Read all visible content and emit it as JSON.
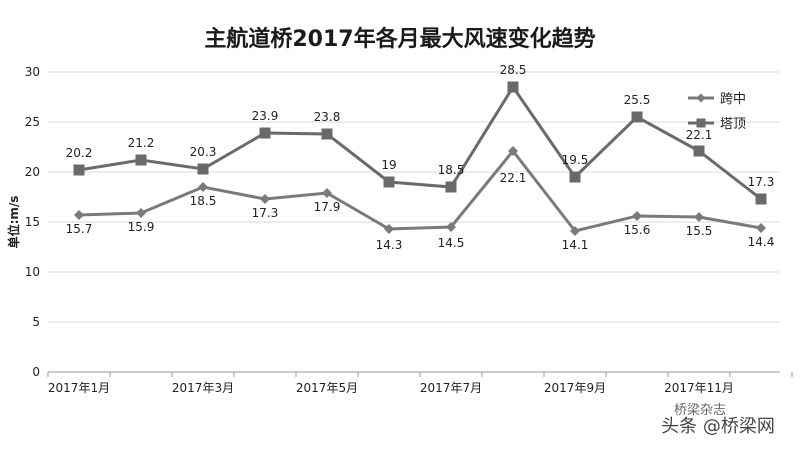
{
  "chart_data": {
    "type": "line",
    "title": "主航道桥2017年各月最大风速变化趋势",
    "ylabel": "单位:m/s",
    "xlabel": "",
    "ylim": [
      0,
      30
    ],
    "yticks": [
      "0",
      "5",
      "10",
      "15",
      "20",
      "25",
      "30"
    ],
    "x": [
      "2017年1月",
      "2017年2月",
      "2017年3月",
      "2017年4月",
      "2017年5月",
      "2017年6月",
      "2017年7月",
      "2017年8月",
      "2017年9月",
      "2017年10月",
      "2017年11月",
      "2017年12月"
    ],
    "xtick_labels": [
      "2017年1月",
      "2017年3月",
      "2017年5月",
      "2017年7月",
      "2017年9月",
      "2017年11月"
    ],
    "grid": "horizontal",
    "legend_position": "right",
    "series": [
      {
        "name": "跨中",
        "marker": "diamond",
        "color": "#7a7a7a",
        "values": [
          15.7,
          15.9,
          18.5,
          17.3,
          17.9,
          14.3,
          14.5,
          22.1,
          14.1,
          15.6,
          15.5,
          14.4
        ],
        "labels": [
          "15.7",
          "15.9",
          "18.5",
          "17.3",
          "17.9",
          "14.3",
          "14.5",
          "22.1",
          "14.1",
          "15.6",
          "15.5",
          "14.4"
        ]
      },
      {
        "name": "塔顶",
        "marker": "square",
        "color": "#6a6a6a",
        "values": [
          20.2,
          21.2,
          20.3,
          23.9,
          23.8,
          19,
          18.5,
          28.5,
          19.5,
          25.5,
          22.1,
          17.3
        ],
        "labels": [
          "20.2",
          "21.2",
          "20.3",
          "23.9",
          "23.8",
          "19",
          "18.5",
          "28.5",
          "19.5",
          "25.5",
          "22.1",
          "17.3"
        ]
      }
    ]
  },
  "watermark": {
    "line1": "头条 @桥梁网",
    "line2": "桥梁杂志"
  }
}
